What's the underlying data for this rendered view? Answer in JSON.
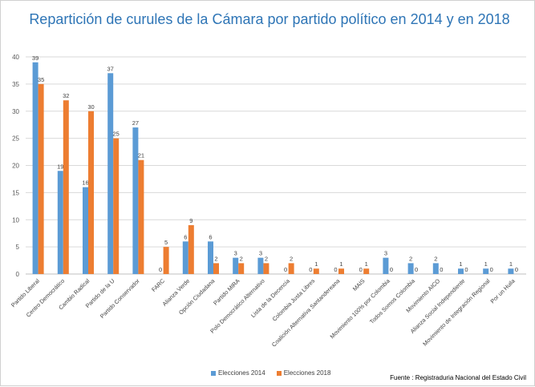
{
  "chart_data": {
    "type": "bar",
    "title": "Repartición de curules de la Cámara por partido político en 2014 y en 2018",
    "xlabel": "",
    "ylabel": "",
    "ylim": [
      0,
      40
    ],
    "yticks": [
      0,
      5,
      10,
      15,
      20,
      25,
      30,
      35,
      40
    ],
    "grid": true,
    "legend_position": "bottom",
    "categories": [
      "Partido Liberal",
      "Centro Democrático",
      "Cambio Radical",
      "Partido de la U",
      "Partido Conservador",
      "FARC",
      "Alianza Verde",
      "Opción Ciudadana",
      "Partido MIRA",
      "Polo Democrático Alternativo",
      "Lista de la Decencia",
      "Colombia Justa Libres",
      "Coalición Alternativa Santandereana",
      "MAIS",
      "Movimiento 100% por Colombia",
      "Todos Somos Colombia",
      "Movimiento AICO",
      "Alianza Social Independiente",
      "Movimiento de Integración Regional",
      "Por un Huila"
    ],
    "series": [
      {
        "name": "Elecciones 2014",
        "color": "#5b9bd5",
        "values": [
          39,
          19,
          16,
          37,
          27,
          0,
          6,
          6,
          3,
          3,
          0,
          0,
          0,
          0,
          3,
          2,
          2,
          1,
          1,
          1
        ]
      },
      {
        "name": "Elecciones 2018",
        "color": "#ed7d31",
        "values": [
          35,
          32,
          30,
          25,
          21,
          5,
          9,
          2,
          2,
          2,
          2,
          1,
          1,
          1,
          0,
          0,
          0,
          0,
          0,
          0
        ]
      }
    ],
    "source": "Fuente : Registraduria Nacional del Estado Civil"
  }
}
